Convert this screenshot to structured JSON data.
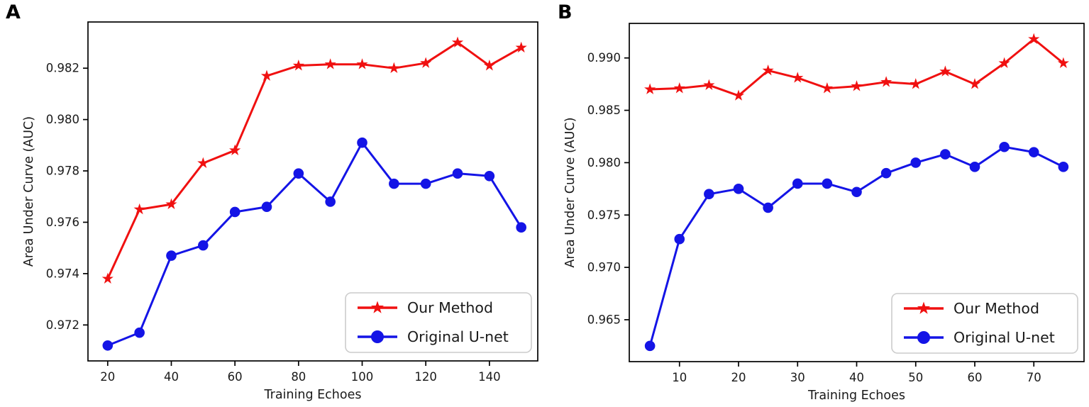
{
  "panels": [
    {
      "label": "A"
    },
    {
      "label": "B"
    }
  ],
  "colors": {
    "our_method": "#f01010",
    "original_unet": "#1414e6",
    "axis": "#000000",
    "text": "#1a1a1a",
    "legend_border": "#cccccc",
    "background": "#ffffff"
  },
  "chart_data": [
    {
      "type": "line",
      "panel": "A",
      "title": "",
      "xlabel": "Training Echoes",
      "ylabel": "Area Under Curve (AUC)",
      "x": [
        20,
        30,
        40,
        50,
        60,
        70,
        80,
        90,
        100,
        110,
        120,
        130,
        140,
        150
      ],
      "series": [
        {
          "name": "Our Method",
          "color": "#f01010",
          "marker": "star",
          "values": [
            0.9738,
            0.9765,
            0.9767,
            0.9783,
            0.9788,
            0.9817,
            0.9821,
            0.98215,
            0.98215,
            0.982,
            0.9822,
            0.983,
            0.9821,
            0.9828
          ]
        },
        {
          "name": "Original U-net",
          "color": "#1414e6",
          "marker": "circle",
          "values": [
            0.9712,
            0.9717,
            0.9747,
            0.9751,
            0.9764,
            0.9766,
            0.9779,
            0.9768,
            0.9791,
            0.9775,
            0.9775,
            0.9779,
            0.9778,
            0.9758
          ]
        }
      ],
      "xticks": [
        20,
        40,
        60,
        80,
        100,
        120,
        140
      ],
      "yticks": [
        0.972,
        0.974,
        0.976,
        0.978,
        0.98,
        0.982
      ],
      "ytick_decimals": 3,
      "xlim": [
        13.8,
        155.2
      ],
      "ylim": [
        0.9706,
        0.9838
      ],
      "grid": false,
      "legend_position": "lower right",
      "legend": [
        "Our Method",
        "Original U-net"
      ]
    },
    {
      "type": "line",
      "panel": "B",
      "title": "",
      "xlabel": "Training Echoes",
      "ylabel": "Area Under Curve (AUC)",
      "x": [
        5,
        10,
        15,
        20,
        25,
        30,
        35,
        40,
        45,
        50,
        55,
        60,
        65,
        70,
        75
      ],
      "series": [
        {
          "name": "Our Method",
          "color": "#f01010",
          "marker": "star",
          "values": [
            0.987,
            0.9871,
            0.9874,
            0.9864,
            0.9888,
            0.9881,
            0.9871,
            0.9873,
            0.9877,
            0.9875,
            0.9887,
            0.9875,
            0.9895,
            0.9918,
            0.9895
          ]
        },
        {
          "name": "Original U-net",
          "color": "#1414e6",
          "marker": "circle",
          "values": [
            0.9625,
            0.9727,
            0.977,
            0.9775,
            0.9757,
            0.978,
            0.978,
            0.9772,
            0.979,
            0.98,
            0.9808,
            0.9796,
            0.9815,
            0.981,
            0.9796
          ]
        }
      ],
      "xticks": [
        10,
        20,
        30,
        40,
        50,
        60,
        70
      ],
      "yticks": [
        0.965,
        0.97,
        0.975,
        0.98,
        0.985,
        0.99
      ],
      "ytick_decimals": 3,
      "xlim": [
        1.5,
        78.5
      ],
      "ylim": [
        0.961,
        0.9933
      ],
      "grid": false,
      "legend_position": "lower right",
      "legend": [
        "Our Method",
        "Original U-net"
      ]
    }
  ]
}
